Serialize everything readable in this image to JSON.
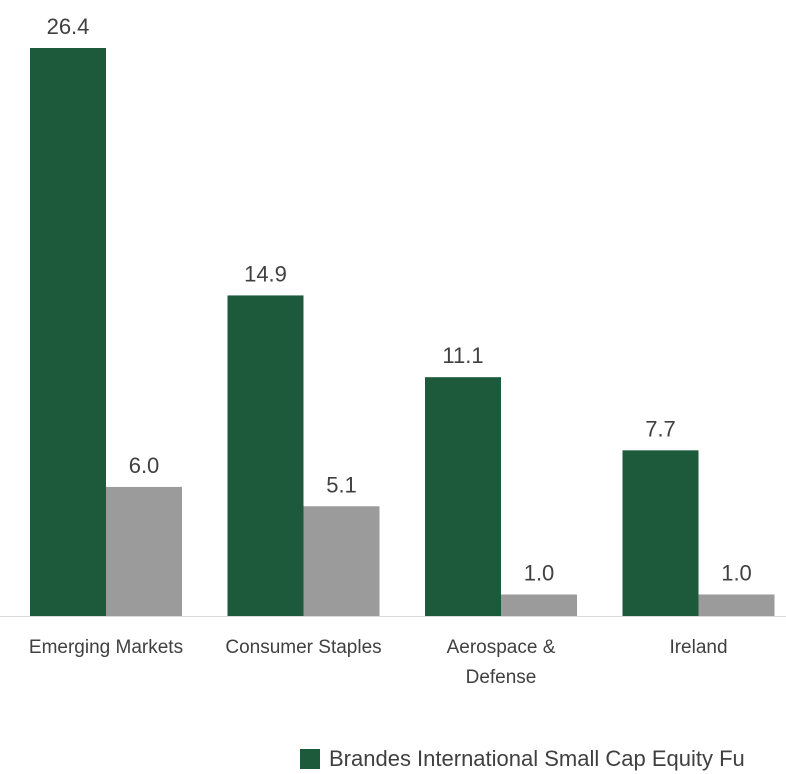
{
  "chart_data": {
    "type": "bar",
    "categories": [
      [
        "Emerging Markets"
      ],
      [
        "Consumer Staples"
      ],
      [
        "Aerospace &",
        "Defense"
      ],
      [
        "Ireland"
      ]
    ],
    "series": [
      {
        "name": "Brandes International Small Cap Equity Fu",
        "color": "#1d5a3c",
        "values": [
          26.4,
          14.9,
          11.1,
          7.7
        ],
        "labels": [
          "26.4",
          "14.9",
          "11.1",
          "7.7"
        ]
      },
      {
        "color": "#9b9b9b",
        "values": [
          6.0,
          5.1,
          1.0,
          1.0
        ],
        "labels": [
          "6.0",
          "5.1",
          "1.0",
          "1.0"
        ]
      }
    ],
    "ylim": [
      0,
      26.4
    ],
    "grid": false,
    "legend_position": "bottom",
    "baseline_color": "#d9d9d9"
  }
}
